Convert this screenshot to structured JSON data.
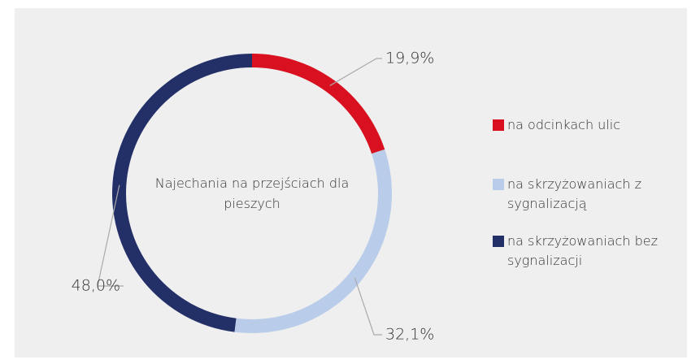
{
  "chart_data": {
    "type": "donut",
    "title": "Najechania na przejściach dla pieszych",
    "categories": [
      "na odcinkach ulic",
      "na skrzyżowaniach z sygnalizacją",
      "na skrzyżowaniach bez sygnalizacji"
    ],
    "values": [
      19.9,
      32.1,
      48.0
    ],
    "value_labels": [
      "19,9%",
      "32,1%",
      "48,0%"
    ],
    "colors": [
      "#d9101f",
      "#b9cdea",
      "#233068"
    ],
    "legend": "right"
  }
}
